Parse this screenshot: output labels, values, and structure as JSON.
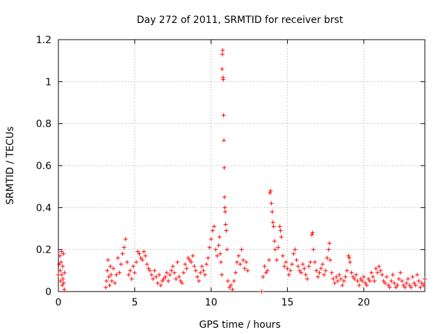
{
  "chart_data": {
    "type": "scatter",
    "title": "Day 272 of 2011, SRMTID for receiver brst",
    "xlabel": "GPS time / hours",
    "ylabel": "SRMTID / TECUs",
    "xlim": [
      0,
      24
    ],
    "ylim": [
      0,
      1.2
    ],
    "xticks": [
      0,
      5,
      10,
      15,
      20
    ],
    "yticks": [
      0,
      0.2,
      0.4,
      0.6,
      0.8,
      1,
      1.2
    ],
    "xtick_labels": [
      "0",
      "5",
      "10",
      "15",
      "20"
    ],
    "ytick_labels": [
      "0",
      "0.2",
      "0.4",
      "0.6",
      "0.8",
      "1",
      "1.2"
    ],
    "grid": true,
    "marker": "+",
    "color": "#ff0000",
    "series": [
      {
        "name": "SRMTID",
        "points": [
          [
            0.0,
            0.08
          ],
          [
            0.05,
            0.13
          ],
          [
            0.1,
            0.17
          ],
          [
            0.12,
            0.1
          ],
          [
            0.15,
            0.05
          ],
          [
            0.18,
            0.14
          ],
          [
            0.2,
            0.19
          ],
          [
            0.22,
            0.08
          ],
          [
            0.25,
            0.03
          ],
          [
            0.28,
            0.12
          ],
          [
            0.3,
            0.06
          ],
          [
            0.33,
            0.18
          ],
          [
            0.35,
            0.04
          ],
          [
            0.38,
            0.01
          ],
          [
            0.4,
            0.09
          ],
          [
            3.1,
            0.02
          ],
          [
            3.15,
            0.05
          ],
          [
            3.2,
            0.1
          ],
          [
            3.25,
            0.15
          ],
          [
            3.3,
            0.07
          ],
          [
            3.35,
            0.03
          ],
          [
            3.4,
            0.12
          ],
          [
            3.45,
            0.08
          ],
          [
            3.5,
            0.05
          ],
          [
            3.6,
            0.11
          ],
          [
            3.7,
            0.04
          ],
          [
            3.8,
            0.08
          ],
          [
            3.9,
            0.16
          ],
          [
            4.0,
            0.09
          ],
          [
            4.1,
            0.13
          ],
          [
            4.2,
            0.18
          ],
          [
            4.3,
            0.21
          ],
          [
            4.4,
            0.25
          ],
          [
            4.5,
            0.14
          ],
          [
            4.6,
            0.08
          ],
          [
            4.7,
            0.1
          ],
          [
            4.8,
            0.06
          ],
          [
            4.9,
            0.12
          ],
          [
            5.0,
            0.09
          ],
          [
            5.1,
            0.14
          ],
          [
            5.2,
            0.19
          ],
          [
            5.3,
            0.18
          ],
          [
            5.4,
            0.16
          ],
          [
            5.5,
            0.15
          ],
          [
            5.6,
            0.19
          ],
          [
            5.7,
            0.17
          ],
          [
            5.8,
            0.13
          ],
          [
            5.9,
            0.11
          ],
          [
            6.0,
            0.1
          ],
          [
            6.1,
            0.08
          ],
          [
            6.2,
            0.06
          ],
          [
            6.3,
            0.1
          ],
          [
            6.4,
            0.07
          ],
          [
            6.5,
            0.04
          ],
          [
            6.6,
            0.08
          ],
          [
            6.7,
            0.03
          ],
          [
            6.8,
            0.05
          ],
          [
            6.9,
            0.06
          ],
          [
            7.0,
            0.07
          ],
          [
            7.1,
            0.09
          ],
          [
            7.2,
            0.05
          ],
          [
            7.3,
            0.08
          ],
          [
            7.4,
            0.1
          ],
          [
            7.5,
            0.12
          ],
          [
            7.6,
            0.09
          ],
          [
            7.7,
            0.06
          ],
          [
            7.8,
            0.14
          ],
          [
            7.9,
            0.07
          ],
          [
            8.0,
            0.05
          ],
          [
            8.1,
            0.04
          ],
          [
            8.2,
            0.09
          ],
          [
            8.3,
            0.13
          ],
          [
            8.4,
            0.11
          ],
          [
            8.5,
            0.16
          ],
          [
            8.6,
            0.15
          ],
          [
            8.7,
            0.14
          ],
          [
            8.8,
            0.17
          ],
          [
            8.9,
            0.12
          ],
          [
            9.0,
            0.1
          ],
          [
            9.1,
            0.07
          ],
          [
            9.2,
            0.05
          ],
          [
            9.3,
            0.09
          ],
          [
            9.4,
            0.12
          ],
          [
            9.5,
            0.1
          ],
          [
            9.6,
            0.08
          ],
          [
            9.7,
            0.13
          ],
          [
            9.8,
            0.16
          ],
          [
            9.9,
            0.21
          ],
          [
            10.0,
            0.25
          ],
          [
            10.1,
            0.29
          ],
          [
            10.2,
            0.31
          ],
          [
            10.3,
            0.2
          ],
          [
            10.4,
            0.17
          ],
          [
            10.5,
            0.22
          ],
          [
            10.55,
            0.26
          ],
          [
            10.6,
            0.18
          ],
          [
            10.65,
            0.14
          ],
          [
            10.7,
            0.08
          ],
          [
            10.72,
            1.06
          ],
          [
            10.74,
            1.13
          ],
          [
            10.76,
            1.15
          ],
          [
            10.78,
            1.02
          ],
          [
            10.8,
            1.01
          ],
          [
            10.82,
            0.84
          ],
          [
            10.84,
            0.72
          ],
          [
            10.86,
            0.59
          ],
          [
            10.88,
            0.45
          ],
          [
            10.9,
            0.4
          ],
          [
            10.92,
            0.38
          ],
          [
            10.95,
            0.32
          ],
          [
            11.0,
            0.29
          ],
          [
            11.05,
            0.2
          ],
          [
            11.1,
            0.05
          ],
          [
            11.2,
            0.02
          ],
          [
            11.3,
            0.03
          ],
          [
            11.4,
            0.01
          ],
          [
            11.5,
            0.05
          ],
          [
            11.6,
            0.09
          ],
          [
            11.7,
            0.14
          ],
          [
            11.8,
            0.17
          ],
          [
            11.9,
            0.13
          ],
          [
            12.0,
            0.2
          ],
          [
            12.1,
            0.15
          ],
          [
            12.2,
            0.11
          ],
          [
            12.3,
            0.14
          ],
          [
            12.4,
            0.1
          ],
          [
            13.3,
            0.0
          ],
          [
            13.4,
            0.07
          ],
          [
            13.5,
            0.12
          ],
          [
            13.6,
            0.09
          ],
          [
            13.7,
            0.1
          ],
          [
            13.8,
            0.15
          ],
          [
            13.85,
            0.47
          ],
          [
            13.9,
            0.48
          ],
          [
            13.95,
            0.42
          ],
          [
            14.0,
            0.38
          ],
          [
            14.05,
            0.33
          ],
          [
            14.1,
            0.31
          ],
          [
            14.15,
            0.24
          ],
          [
            14.2,
            0.2
          ],
          [
            14.3,
            0.15
          ],
          [
            14.4,
            0.21
          ],
          [
            14.5,
            0.31
          ],
          [
            14.55,
            0.29
          ],
          [
            14.6,
            0.26
          ],
          [
            14.7,
            0.17
          ],
          [
            14.8,
            0.12
          ],
          [
            14.9,
            0.14
          ],
          [
            15.0,
            0.11
          ],
          [
            15.1,
            0.08
          ],
          [
            15.2,
            0.1
          ],
          [
            15.3,
            0.13
          ],
          [
            15.4,
            0.18
          ],
          [
            15.5,
            0.2
          ],
          [
            15.6,
            0.15
          ],
          [
            15.7,
            0.12
          ],
          [
            15.8,
            0.1
          ],
          [
            15.9,
            0.09
          ],
          [
            16.0,
            0.13
          ],
          [
            16.1,
            0.11
          ],
          [
            16.2,
            0.08
          ],
          [
            16.3,
            0.06
          ],
          [
            16.4,
            0.12
          ],
          [
            16.5,
            0.14
          ],
          [
            16.6,
            0.27
          ],
          [
            16.65,
            0.28
          ],
          [
            16.7,
            0.2
          ],
          [
            16.8,
            0.14
          ],
          [
            16.9,
            0.1
          ],
          [
            17.0,
            0.07
          ],
          [
            17.1,
            0.09
          ],
          [
            17.2,
            0.11
          ],
          [
            17.3,
            0.13
          ],
          [
            17.4,
            0.08
          ],
          [
            17.5,
            0.1
          ],
          [
            17.6,
            0.16
          ],
          [
            17.7,
            0.2
          ],
          [
            17.75,
            0.23
          ],
          [
            17.8,
            0.15
          ],
          [
            17.9,
            0.09
          ],
          [
            18.0,
            0.06
          ],
          [
            18.1,
            0.04
          ],
          [
            18.2,
            0.07
          ],
          [
            18.3,
            0.05
          ],
          [
            18.4,
            0.08
          ],
          [
            18.5,
            0.06
          ],
          [
            18.6,
            0.03
          ],
          [
            18.7,
            0.05
          ],
          [
            18.8,
            0.07
          ],
          [
            18.9,
            0.1
          ],
          [
            19.0,
            0.17
          ],
          [
            19.05,
            0.16
          ],
          [
            19.1,
            0.14
          ],
          [
            19.2,
            0.09
          ],
          [
            19.3,
            0.07
          ],
          [
            19.4,
            0.06
          ],
          [
            19.5,
            0.08
          ],
          [
            19.6,
            0.05
          ],
          [
            19.7,
            0.03
          ],
          [
            19.8,
            0.06
          ],
          [
            19.9,
            0.05
          ],
          [
            20.0,
            0.07
          ],
          [
            20.1,
            0.04
          ],
          [
            20.2,
            0.03
          ],
          [
            20.3,
            0.06
          ],
          [
            20.4,
            0.05
          ],
          [
            20.5,
            0.09
          ],
          [
            20.6,
            0.07
          ],
          [
            20.7,
            0.05
          ],
          [
            20.8,
            0.11
          ],
          [
            20.9,
            0.09
          ],
          [
            21.0,
            0.12
          ],
          [
            21.1,
            0.1
          ],
          [
            21.2,
            0.08
          ],
          [
            21.3,
            0.05
          ],
          [
            21.4,
            0.04
          ],
          [
            21.5,
            0.07
          ],
          [
            21.6,
            0.03
          ],
          [
            21.7,
            0.02
          ],
          [
            21.8,
            0.05
          ],
          [
            21.9,
            0.08
          ],
          [
            22.0,
            0.04
          ],
          [
            22.1,
            0.02
          ],
          [
            22.2,
            0.03
          ],
          [
            22.3,
            0.06
          ],
          [
            22.4,
            0.09
          ],
          [
            22.5,
            0.05
          ],
          [
            22.6,
            0.03
          ],
          [
            22.7,
            0.02
          ],
          [
            22.8,
            0.04
          ],
          [
            22.9,
            0.06
          ],
          [
            23.0,
            0.03
          ],
          [
            23.1,
            0.02
          ],
          [
            23.2,
            0.07
          ],
          [
            23.3,
            0.04
          ],
          [
            23.4,
            0.03
          ],
          [
            23.5,
            0.08
          ],
          [
            23.6,
            0.05
          ],
          [
            23.7,
            0.02
          ],
          [
            23.8,
            0.04
          ],
          [
            23.9,
            0.03
          ],
          [
            24.0,
            0.06
          ]
        ]
      }
    ]
  }
}
